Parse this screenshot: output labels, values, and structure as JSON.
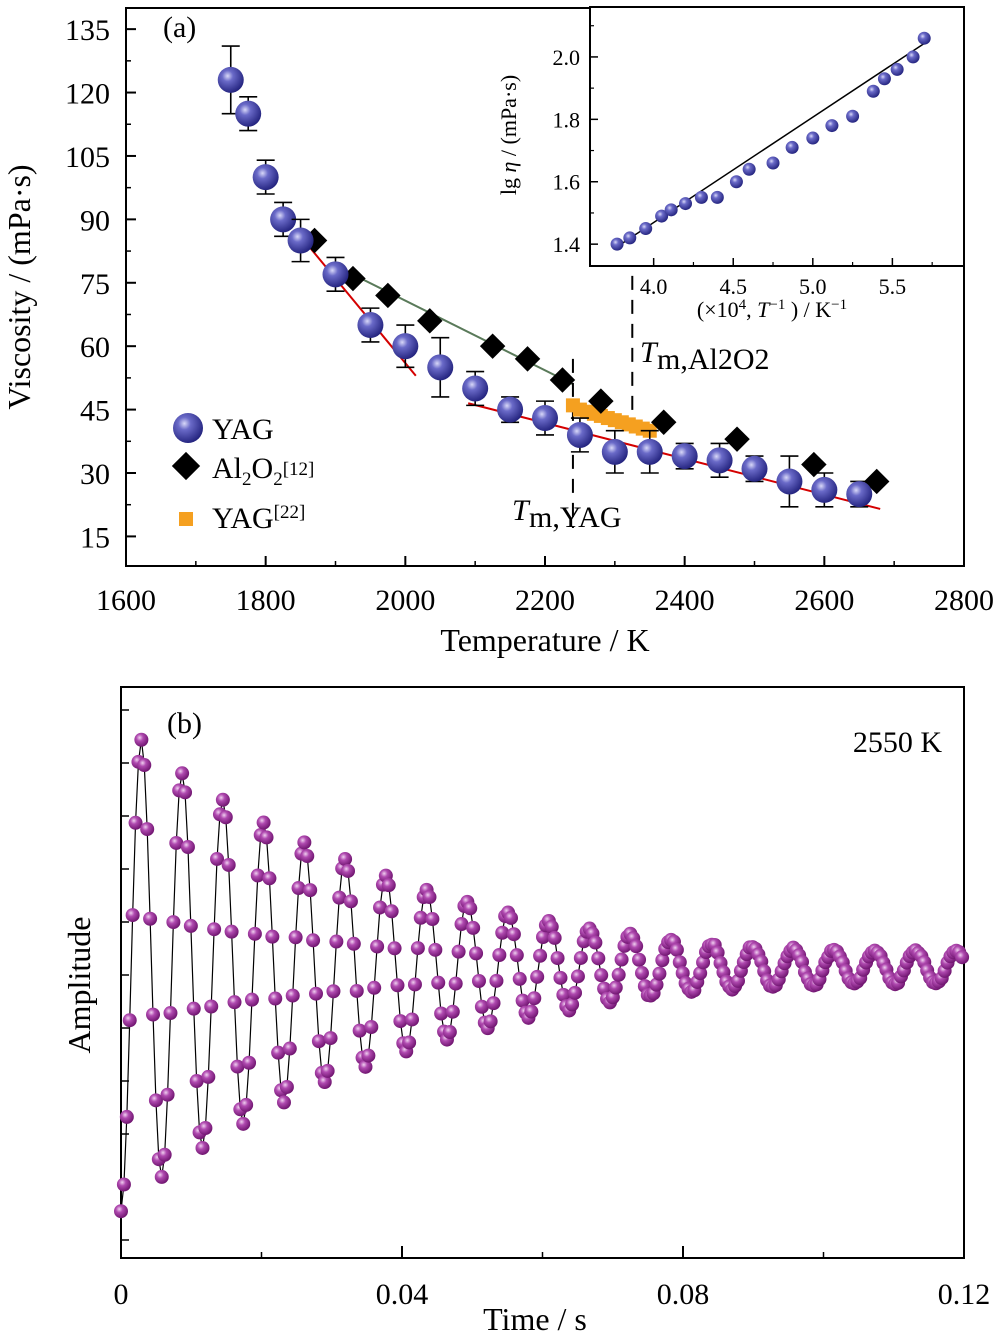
{
  "colors": {
    "yag": "#1f1f7a",
    "yag_highlight": "#c8c8ef",
    "al2o3": "#000000",
    "yag22": "#f5a020",
    "fit_red": "#d40000",
    "fit_green": "#5a7a5a",
    "amplitude": "#8b1a8b",
    "amplitude_highlight": "#e8c0e8"
  },
  "chart_data": [
    {
      "panel_label": "(a)",
      "type": "scatter",
      "xlabel": "Temperature / K",
      "ylabel": "Viscosity / (mPa·s)",
      "xlim": [
        1600,
        2800
      ],
      "ylim": [
        8,
        140
      ],
      "xticks": [
        "1600",
        "1800",
        "2000",
        "2200",
        "2400",
        "2600",
        "2800"
      ],
      "yticks": [
        "15",
        "30",
        "45",
        "60",
        "75",
        "90",
        "105",
        "120",
        "135"
      ],
      "legend_position": "bottom-left",
      "series": [
        {
          "name": "YAG",
          "marker": "sphere",
          "x": [
            1750,
            1775,
            1800,
            1825,
            1850,
            1900,
            1950,
            2000,
            2050,
            2100,
            2150,
            2200,
            2250,
            2300,
            2350,
            2400,
            2450,
            2500,
            2550,
            2600,
            2650
          ],
          "y": [
            123,
            115,
            100,
            90,
            85,
            77,
            65,
            60,
            55,
            50,
            45,
            43,
            39,
            35,
            35,
            34,
            33,
            31,
            28,
            26,
            25
          ],
          "err": [
            8,
            4,
            4,
            4,
            5,
            4,
            4,
            5,
            7,
            4,
            3,
            4,
            4,
            5,
            5,
            3,
            4,
            3,
            6,
            4,
            3
          ]
        },
        {
          "name": "Al2O2",
          "name_sup": "[12]",
          "marker": "diamond",
          "x": [
            1870,
            1925,
            1975,
            2035,
            2125,
            2175,
            2225,
            2280,
            2370,
            2475,
            2585,
            2675
          ],
          "y": [
            85,
            76,
            72,
            66,
            60,
            57,
            52,
            47,
            42,
            38,
            32,
            28
          ]
        },
        {
          "name": "YAG",
          "name_sup": "[22]",
          "marker": "square",
          "x": [
            2240,
            2250,
            2260,
            2270,
            2280,
            2290,
            2300,
            2310,
            2320,
            2330,
            2340,
            2350
          ],
          "y": [
            46,
            45,
            44.5,
            44,
            43.5,
            43,
            42.5,
            42,
            41.5,
            41,
            40.5,
            40
          ]
        }
      ],
      "fits": [
        {
          "color": "red",
          "x": [
            1860,
            2015
          ],
          "y": [
            84,
            53
          ]
        },
        {
          "color": "red",
          "x": [
            2090,
            2680
          ],
          "y": [
            46.5,
            21.5
          ]
        },
        {
          "color": "green",
          "x": [
            1900,
            2240
          ],
          "y": [
            79,
            51
          ]
        }
      ],
      "melting_lines": [
        {
          "x": 2240,
          "label_main": "T",
          "label_sub": "m,YAG"
        },
        {
          "x": 2325,
          "label_main": "T",
          "label_sub": "m,Al2O2"
        }
      ],
      "inset": {
        "type": "scatter",
        "xlabel_parts": [
          "(×10",
          "4",
          ", ",
          "T",
          "−1",
          " ) / K",
          "−1"
        ],
        "ylabel_parts": [
          "lg ",
          "η",
          " / (mPa·s)"
        ],
        "xlim": [
          3.6,
          5.95
        ],
        "ylim": [
          1.33,
          2.16
        ],
        "xticks": [
          "4.0",
          "4.5",
          "5.0",
          "5.5"
        ],
        "yticks": [
          "1.4",
          "1.6",
          "1.8",
          "2.0"
        ],
        "x": [
          3.77,
          3.85,
          3.95,
          4.05,
          4.11,
          4.2,
          4.3,
          4.4,
          4.52,
          4.6,
          4.75,
          4.87,
          5.0,
          5.12,
          5.25,
          5.38,
          5.45,
          5.53,
          5.63,
          5.7
        ],
        "y": [
          1.4,
          1.42,
          1.45,
          1.49,
          1.51,
          1.53,
          1.55,
          1.55,
          1.6,
          1.64,
          1.66,
          1.71,
          1.74,
          1.78,
          1.81,
          1.89,
          1.93,
          1.96,
          2.0,
          2.06
        ],
        "fit": {
          "x": [
            3.75,
            5.72
          ],
          "y": [
            1.385,
            2.05
          ]
        }
      }
    },
    {
      "panel_label": "(b)",
      "annotation": "2550 K",
      "type": "line",
      "xlabel": "Time / s",
      "ylabel": "Amplitude",
      "xlim": [
        0,
        0.12
      ],
      "xticks": [
        "0",
        "0.04",
        "0.08",
        "0.12"
      ],
      "signal": {
        "description_params_only": true,
        "A0": 1.0,
        "period_s": 0.0058,
        "decay_tau_s": 0.036,
        "noise_floor": 0.035,
        "t_start": 0.0,
        "t_end": 0.12,
        "samples_per_period": 14
      }
    }
  ]
}
